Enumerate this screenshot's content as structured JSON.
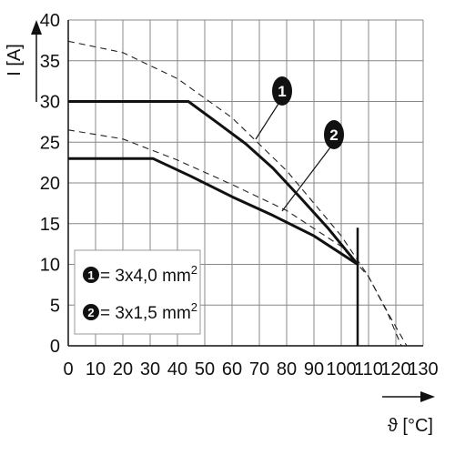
{
  "chart_data": {
    "type": "line",
    "ylabel": "I [A]",
    "xlabel": "ϑ [°C]",
    "xlim": [
      0,
      130
    ],
    "ylim": [
      0,
      40
    ],
    "x_ticks": [
      "0",
      "10",
      "20",
      "30",
      "40",
      "50",
      "60",
      "70",
      "80",
      "90",
      "100",
      "110",
      "120",
      "130"
    ],
    "y_ticks": [
      "0",
      "5",
      "10",
      "15",
      "20",
      "25",
      "30",
      "35",
      "40"
    ],
    "grid": true,
    "legend_position": "bottom-left",
    "series": [
      {
        "name": "3x4,0 mm²",
        "marker": "1",
        "style": "solid",
        "points": [
          [
            0,
            30
          ],
          [
            44,
            30
          ],
          [
            55,
            27.3
          ],
          [
            65,
            24.8
          ],
          [
            75,
            21.8
          ],
          [
            85,
            18.2
          ],
          [
            95,
            14.5
          ],
          [
            106,
            10
          ]
        ]
      },
      {
        "name": "3x1,5 mm²",
        "marker": "2",
        "style": "solid",
        "points": [
          [
            0,
            23
          ],
          [
            31,
            23
          ],
          [
            45,
            20.8
          ],
          [
            60,
            18.3
          ],
          [
            75,
            16
          ],
          [
            90,
            13.5
          ],
          [
            106,
            10
          ]
        ]
      },
      {
        "name": "",
        "style": "dashed",
        "points": [
          [
            0,
            37.4
          ],
          [
            20,
            36
          ],
          [
            40,
            32.8
          ],
          [
            60,
            28
          ],
          [
            80,
            21.5
          ],
          [
            100,
            13.5
          ],
          [
            110,
            8.5
          ],
          [
            118,
            3.5
          ],
          [
            124,
            0
          ]
        ]
      },
      {
        "name": "",
        "style": "dashed",
        "points": [
          [
            0,
            26.5
          ],
          [
            20,
            25.4
          ],
          [
            40,
            22.8
          ],
          [
            60,
            19.8
          ],
          [
            80,
            16.6
          ],
          [
            100,
            12.2
          ],
          [
            110,
            8.5
          ],
          [
            117,
            4
          ],
          [
            122,
            0
          ]
        ]
      }
    ],
    "cutoff_x": 106,
    "legend": [
      {
        "marker": "1",
        "text": "= 3x4,0 mm",
        "superscript": "2"
      },
      {
        "marker": "2",
        "text": "= 3x1,5 mm",
        "superscript": "2"
      }
    ],
    "callouts": [
      {
        "marker": "1",
        "series_index": 0
      },
      {
        "marker": "2",
        "series_index": 1
      }
    ]
  }
}
